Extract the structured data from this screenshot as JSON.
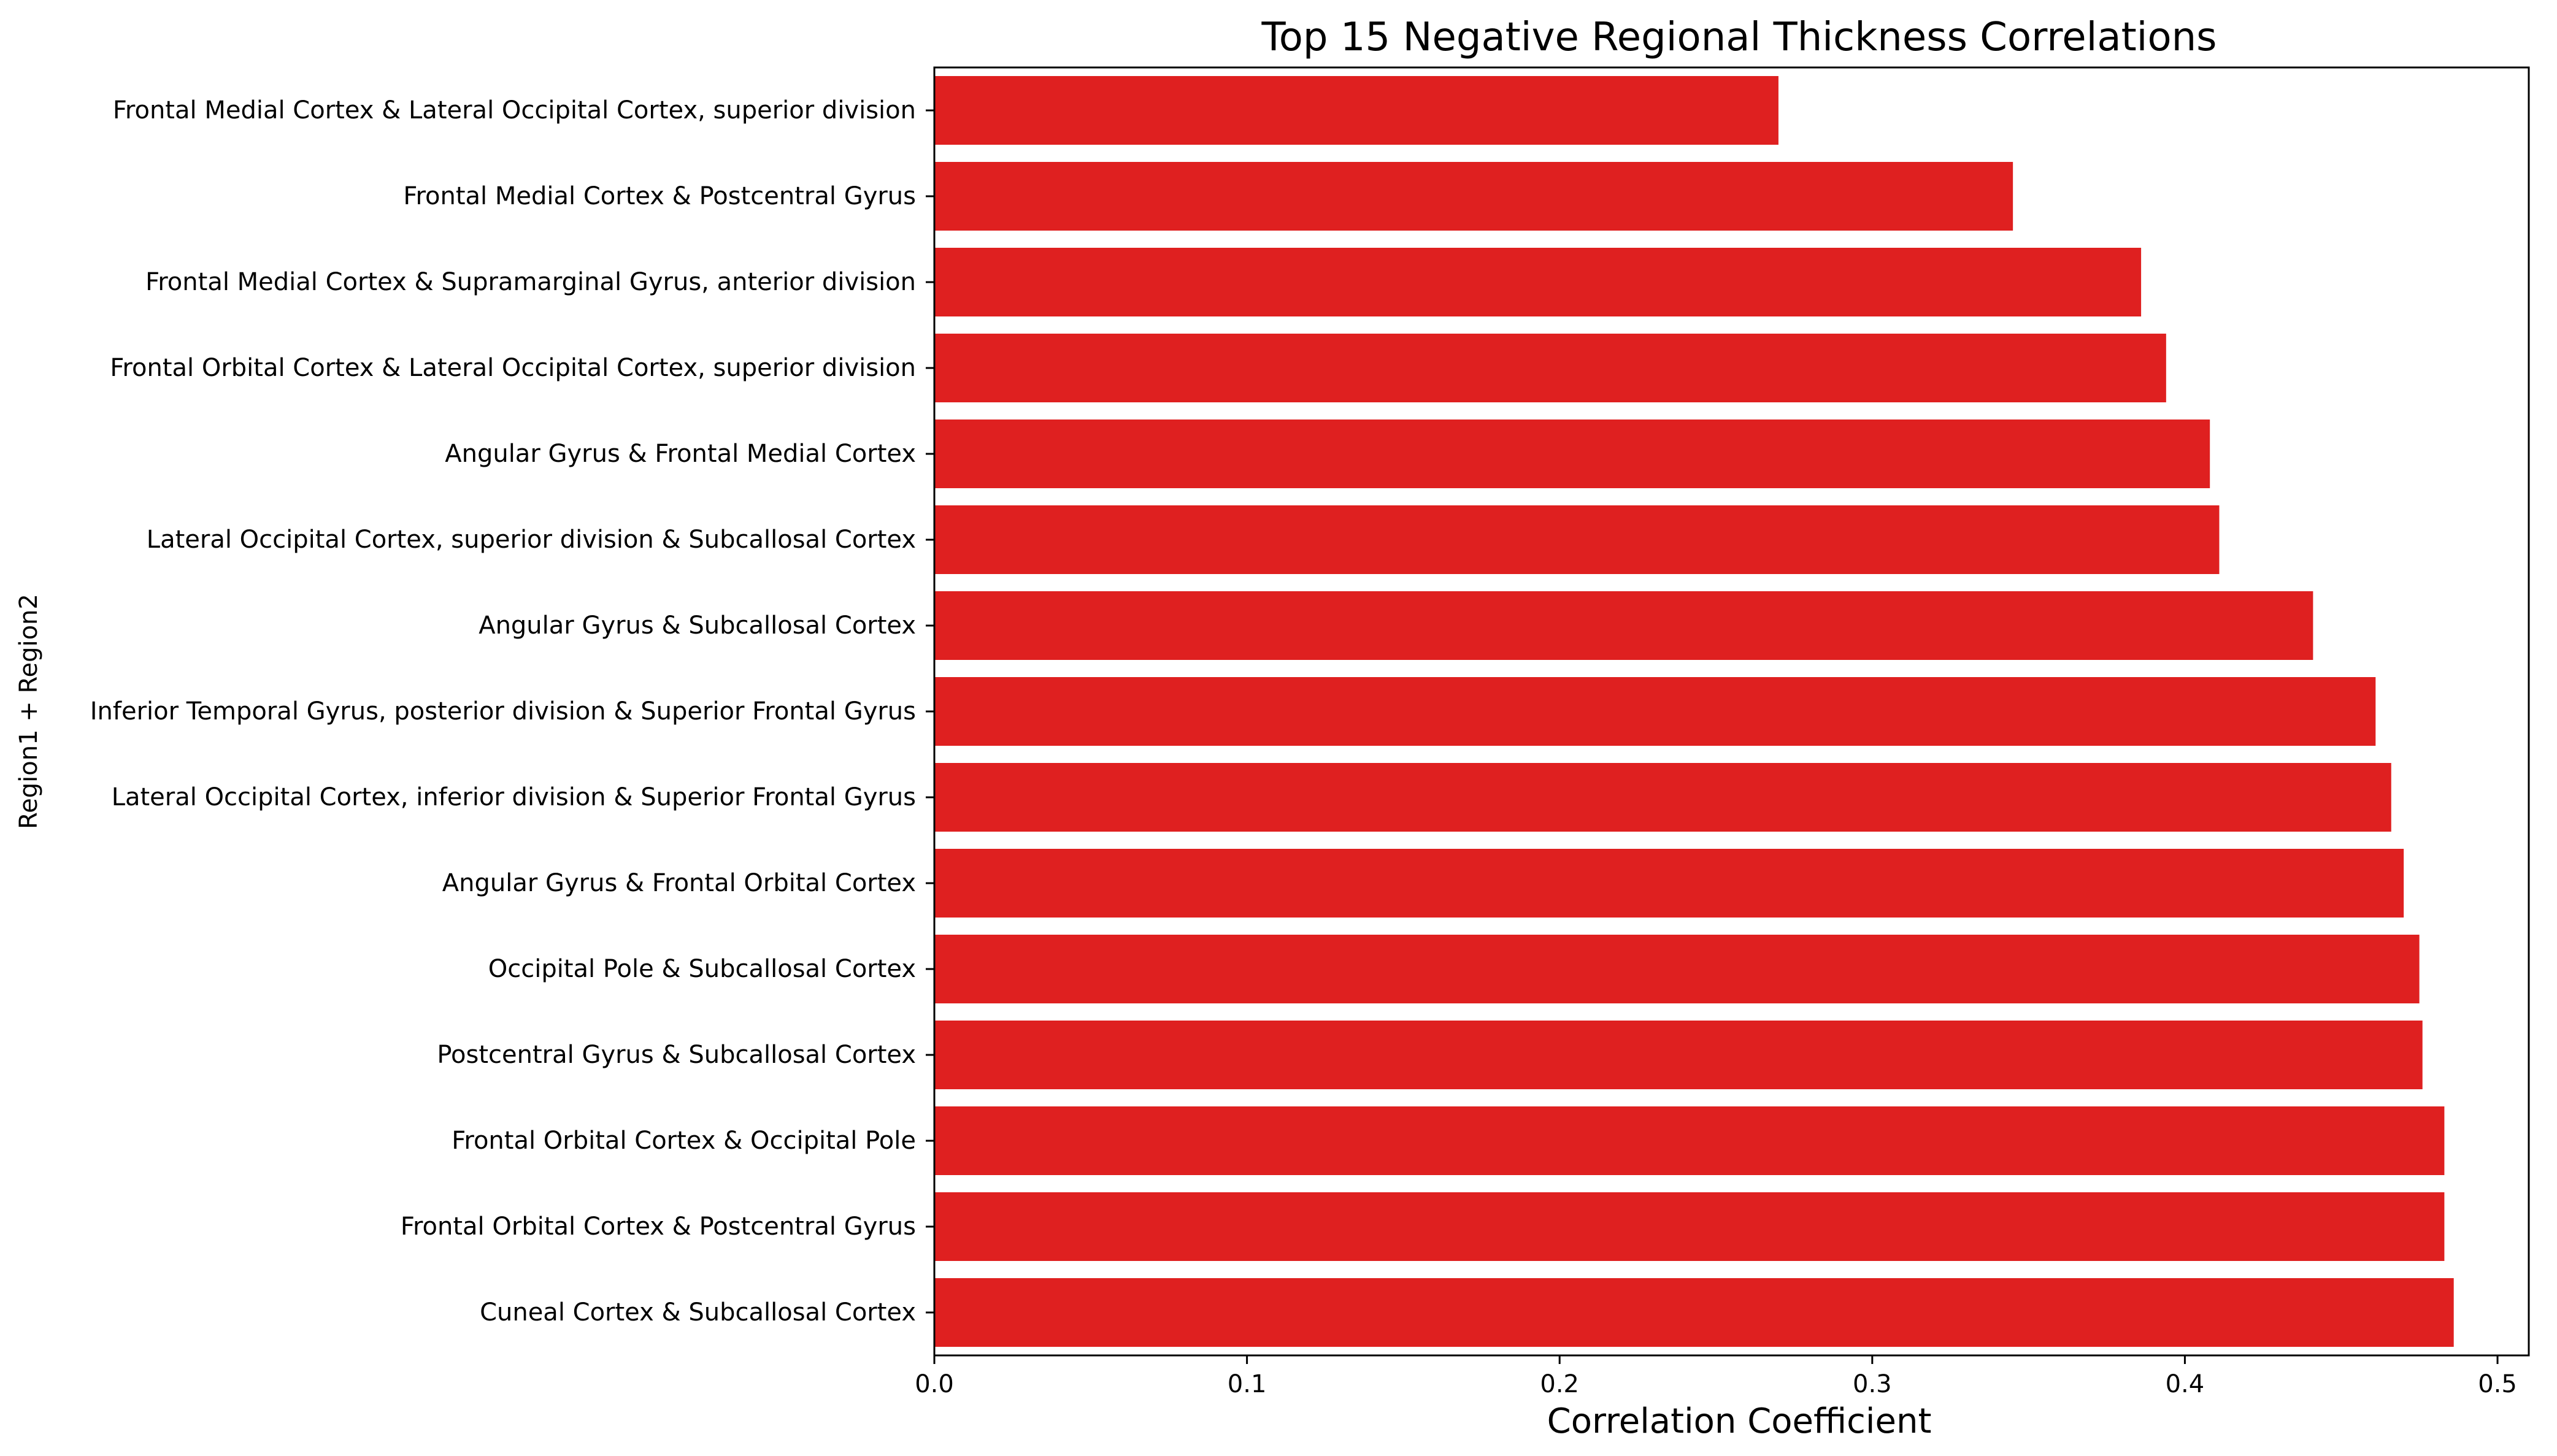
{
  "chart_data": {
    "type": "bar",
    "orientation": "horizontal",
    "title": "Top 15 Negative Regional Thickness Correlations",
    "xlabel": "Correlation Coefficient",
    "ylabel": "Region1 + Region2",
    "xlim": [
      0,
      0.51
    ],
    "xticks": [
      "0.0",
      "0.1",
      "0.2",
      "0.3",
      "0.4",
      "0.5"
    ],
    "grid": false,
    "bar_color": "#df2020",
    "categories": [
      "Frontal Medial Cortex & Lateral Occipital Cortex, superior division",
      "Frontal Medial Cortex & Postcentral Gyrus",
      "Frontal Medial Cortex & Supramarginal Gyrus, anterior division",
      "Frontal Orbital Cortex & Lateral Occipital Cortex, superior division",
      "Angular Gyrus & Frontal Medial Cortex",
      "Lateral Occipital Cortex, superior division & Subcallosal Cortex",
      "Angular Gyrus & Subcallosal Cortex",
      "Inferior Temporal Gyrus, posterior division & Superior Frontal Gyrus",
      "Lateral Occipital Cortex, inferior division & Superior Frontal Gyrus",
      "Angular Gyrus & Frontal Orbital Cortex",
      "Occipital Pole & Subcallosal Cortex",
      "Postcentral Gyrus & Subcallosal Cortex",
      "Frontal Orbital Cortex & Occipital Pole",
      "Frontal Orbital Cortex & Postcentral Gyrus",
      "Cuneal Cortex & Subcallosal Cortex"
    ],
    "values": [
      0.27,
      0.345,
      0.386,
      0.394,
      0.408,
      0.411,
      0.441,
      0.461,
      0.466,
      0.47,
      0.475,
      0.476,
      0.483,
      0.483,
      0.486
    ]
  }
}
